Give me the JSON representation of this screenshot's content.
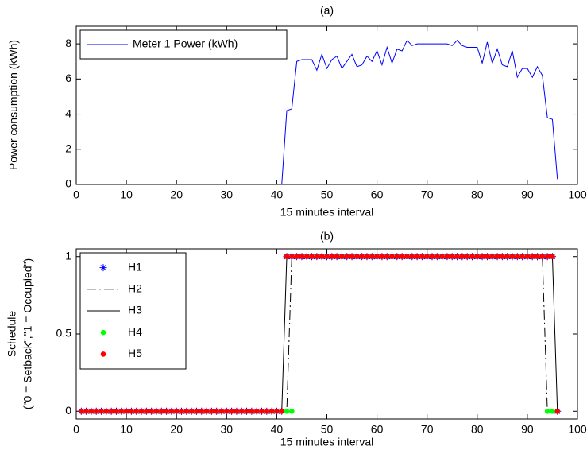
{
  "chart_data": [
    {
      "type": "line",
      "title": "(a)",
      "xlabel": "15 minutes interval",
      "ylabel": [
        "Power consumption (kWh)"
      ],
      "x": [
        1,
        2,
        3,
        4,
        5,
        6,
        7,
        8,
        9,
        10,
        11,
        12,
        13,
        14,
        15,
        16,
        17,
        18,
        19,
        20,
        21,
        22,
        23,
        24,
        25,
        26,
        27,
        28,
        29,
        30,
        31,
        32,
        33,
        34,
        35,
        36,
        37,
        38,
        39,
        40,
        41,
        42,
        43,
        44,
        45,
        46,
        47,
        48,
        49,
        50,
        51,
        52,
        53,
        54,
        55,
        56,
        57,
        58,
        59,
        60,
        61,
        62,
        63,
        64,
        65,
        66,
        67,
        68,
        69,
        70,
        71,
        72,
        73,
        74,
        75,
        76,
        77,
        78,
        79,
        80,
        81,
        82,
        83,
        84,
        85,
        86,
        87,
        88,
        89,
        90,
        91,
        92,
        93,
        94,
        95,
        96
      ],
      "series": [
        {
          "name": "Meter 1 Power (kWh)",
          "color": "#0000ff",
          "linestyle": "-",
          "values": [
            0,
            0,
            0,
            0,
            0,
            0,
            0,
            0,
            0,
            0,
            0,
            0,
            0,
            0,
            0,
            0,
            0,
            0,
            0,
            0,
            0,
            0,
            0,
            0,
            0,
            0,
            0,
            0,
            0,
            0,
            0,
            0,
            0,
            0,
            0,
            0,
            0,
            0,
            0,
            0,
            0,
            4.2,
            4.3,
            7,
            7.1,
            7.1,
            7.1,
            6.5,
            7.4,
            6.6,
            7.1,
            7.3,
            6.6,
            7,
            7.4,
            6.7,
            6.8,
            7.3,
            7,
            7.6,
            6.8,
            7.8,
            6.9,
            7.7,
            7.6,
            8.2,
            7.9,
            8,
            8,
            8,
            8,
            8,
            8,
            8,
            7.9,
            8.2,
            7.9,
            7.8,
            7.8,
            7.8,
            6.9,
            8.1,
            6.9,
            7.7,
            6.8,
            6.7,
            7.6,
            6.1,
            6.6,
            6.6,
            6.1,
            6.7,
            6.2,
            3.8,
            3.7,
            0.3
          ]
        }
      ],
      "xlim": [
        0,
        100
      ],
      "xticks": [
        0,
        10,
        20,
        30,
        40,
        50,
        60,
        70,
        80,
        90,
        100
      ],
      "ylim": [
        0,
        9
      ],
      "yticks": [
        0,
        2,
        4,
        6,
        8
      ],
      "grid": false,
      "legend": "upper left"
    },
    {
      "type": "line",
      "title": "(b)",
      "xlabel": "15 minutes interval",
      "ylabel": [
        "Schedule",
        "(\"0 = Setback\",\"1 = Occupied\")"
      ],
      "x": [
        1,
        2,
        3,
        4,
        5,
        6,
        7,
        8,
        9,
        10,
        11,
        12,
        13,
        14,
        15,
        16,
        17,
        18,
        19,
        20,
        21,
        22,
        23,
        24,
        25,
        26,
        27,
        28,
        29,
        30,
        31,
        32,
        33,
        34,
        35,
        36,
        37,
        38,
        39,
        40,
        41,
        42,
        43,
        44,
        45,
        46,
        47,
        48,
        49,
        50,
        51,
        52,
        53,
        54,
        55,
        56,
        57,
        58,
        59,
        60,
        61,
        62,
        63,
        64,
        65,
        66,
        67,
        68,
        69,
        70,
        71,
        72,
        73,
        74,
        75,
        76,
        77,
        78,
        79,
        80,
        81,
        82,
        83,
        84,
        85,
        86,
        87,
        88,
        89,
        90,
        91,
        92,
        93,
        94,
        95,
        96
      ],
      "series": [
        {
          "name": "H1",
          "color": "#0000ff",
          "marker": "*",
          "linestyle": "none",
          "values": [
            0,
            0,
            0,
            0,
            0,
            0,
            0,
            0,
            0,
            0,
            0,
            0,
            0,
            0,
            0,
            0,
            0,
            0,
            0,
            0,
            0,
            0,
            0,
            0,
            0,
            0,
            0,
            0,
            0,
            0,
            0,
            0,
            0,
            0,
            0,
            0,
            0,
            0,
            0,
            0,
            0,
            1,
            1,
            1,
            1,
            1,
            1,
            1,
            1,
            1,
            1,
            1,
            1,
            1,
            1,
            1,
            1,
            1,
            1,
            1,
            1,
            1,
            1,
            1,
            1,
            1,
            1,
            1,
            1,
            1,
            1,
            1,
            1,
            1,
            1,
            1,
            1,
            1,
            1,
            1,
            1,
            1,
            1,
            1,
            1,
            1,
            1,
            1,
            1,
            1,
            1,
            1,
            1,
            1,
            1,
            0
          ]
        },
        {
          "name": "H2",
          "color": "#000000",
          "linestyle": "-.",
          "values": [
            0,
            0,
            0,
            0,
            0,
            0,
            0,
            0,
            0,
            0,
            0,
            0,
            0,
            0,
            0,
            0,
            0,
            0,
            0,
            0,
            0,
            0,
            0,
            0,
            0,
            0,
            0,
            0,
            0,
            0,
            0,
            0,
            0,
            0,
            0,
            0,
            0,
            0,
            0,
            0,
            0,
            0,
            1,
            1,
            1,
            1,
            1,
            1,
            1,
            1,
            1,
            1,
            1,
            1,
            1,
            1,
            1,
            1,
            1,
            1,
            1,
            1,
            1,
            1,
            1,
            1,
            1,
            1,
            1,
            1,
            1,
            1,
            1,
            1,
            1,
            1,
            1,
            1,
            1,
            1,
            1,
            1,
            1,
            1,
            1,
            1,
            1,
            1,
            1,
            1,
            1,
            1,
            1,
            0,
            0,
            0
          ]
        },
        {
          "name": "H3",
          "color": "#000000",
          "linestyle": "-",
          "values": [
            0,
            0,
            0,
            0,
            0,
            0,
            0,
            0,
            0,
            0,
            0,
            0,
            0,
            0,
            0,
            0,
            0,
            0,
            0,
            0,
            0,
            0,
            0,
            0,
            0,
            0,
            0,
            0,
            0,
            0,
            0,
            0,
            0,
            0,
            0,
            0,
            0,
            0,
            0,
            0,
            0,
            1,
            1,
            1,
            1,
            1,
            1,
            1,
            1,
            1,
            1,
            1,
            1,
            1,
            1,
            1,
            1,
            1,
            1,
            1,
            1,
            1,
            1,
            1,
            1,
            1,
            1,
            1,
            1,
            1,
            1,
            1,
            1,
            1,
            1,
            1,
            1,
            1,
            1,
            1,
            1,
            1,
            1,
            1,
            1,
            1,
            1,
            1,
            1,
            1,
            1,
            1,
            1,
            1,
            1,
            0
          ]
        },
        {
          "name": "H4",
          "color": "#00ff00",
          "marker": ".",
          "linestyle": "none",
          "values": [
            0,
            0,
            0,
            0,
            0,
            0,
            0,
            0,
            0,
            0,
            0,
            0,
            0,
            0,
            0,
            0,
            0,
            0,
            0,
            0,
            0,
            0,
            0,
            0,
            0,
            0,
            0,
            0,
            0,
            0,
            0,
            0,
            0,
            0,
            0,
            0,
            0,
            0,
            0,
            0,
            0,
            0,
            0,
            1,
            1,
            1,
            1,
            1,
            1,
            1,
            1,
            1,
            1,
            1,
            1,
            1,
            1,
            1,
            1,
            1,
            1,
            1,
            1,
            1,
            1,
            1,
            1,
            1,
            1,
            1,
            1,
            1,
            1,
            1,
            1,
            1,
            1,
            1,
            1,
            1,
            1,
            1,
            1,
            1,
            1,
            1,
            1,
            1,
            1,
            1,
            1,
            1,
            1,
            0,
            0,
            0
          ]
        },
        {
          "name": "H5",
          "color": "#ff0000",
          "marker": ".",
          "linestyle": "none",
          "values": [
            0,
            0,
            0,
            0,
            0,
            0,
            0,
            0,
            0,
            0,
            0,
            0,
            0,
            0,
            0,
            0,
            0,
            0,
            0,
            0,
            0,
            0,
            0,
            0,
            0,
            0,
            0,
            0,
            0,
            0,
            0,
            0,
            0,
            0,
            0,
            0,
            0,
            0,
            0,
            0,
            0,
            1,
            1,
            1,
            1,
            1,
            1,
            1,
            1,
            1,
            1,
            1,
            1,
            1,
            1,
            1,
            1,
            1,
            1,
            1,
            1,
            1,
            1,
            1,
            1,
            1,
            1,
            1,
            1,
            1,
            1,
            1,
            1,
            1,
            1,
            1,
            1,
            1,
            1,
            1,
            1,
            1,
            1,
            1,
            1,
            1,
            1,
            1,
            1,
            1,
            1,
            1,
            1,
            1,
            1,
            0
          ]
        }
      ],
      "xlim": [
        0,
        100
      ],
      "xticks": [
        0,
        10,
        20,
        30,
        40,
        50,
        60,
        70,
        80,
        90,
        100
      ],
      "ylim": [
        -0.05,
        1.05
      ],
      "yticks": [
        0,
        0.5,
        1
      ],
      "grid": false,
      "legend": "upper left"
    }
  ]
}
